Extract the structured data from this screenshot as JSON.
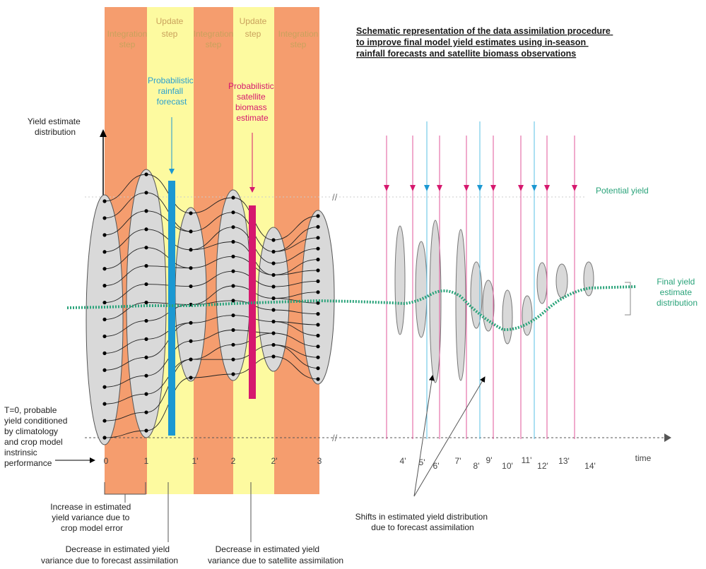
{
  "title": {
    "lines": [
      "Schematic representation of the data assimilation procedure",
      " to improve final model yield estimates using in-season",
      "rainfall forecasts and satellite biomass observations"
    ]
  },
  "colors": {
    "integration_band": "#f59d6e",
    "update_band": "#fdfaa0",
    "forecast_bar": "#1b98d2",
    "satellite_bar": "#d6186e",
    "potential_yield": "#2aa37a",
    "ellipse_fill": "#d9d9d9",
    "header_text": "#c9a15c",
    "forecast_text": "#2aa0cf",
    "satellite_text": "#d6186e",
    "forecast_arrow": "#58c0e6",
    "satellite_arrow": "#e2559a"
  },
  "bands": [
    {
      "type": "integration",
      "label_lines": [
        "Integration",
        "step"
      ]
    },
    {
      "type": "update",
      "label_lines": [
        "Update",
        "step"
      ]
    },
    {
      "type": "integration",
      "label_lines": [
        "Integration",
        "step"
      ]
    },
    {
      "type": "update",
      "label_lines": [
        "Update",
        "step"
      ]
    },
    {
      "type": "integration",
      "label_lines": [
        "Integration",
        "step"
      ]
    }
  ],
  "left_panel": {
    "yield_axis_label": [
      "Yield estimate",
      "distribution"
    ],
    "forecast_label": [
      "Probabilistic",
      "rainfall",
      "forecast"
    ],
    "satellite_label": [
      "Probabilistic",
      "satellite",
      "biomass",
      "estimate"
    ],
    "t0_label": [
      "T=0, probable",
      "yield conditioned",
      "by climatology",
      "and crop model",
      "instrinsic",
      "performance"
    ],
    "steps": [
      "0",
      "1",
      "1'",
      "2",
      "2'",
      "3"
    ]
  },
  "right_panel": {
    "potential_yield_label": "Potential yield",
    "final_label": [
      "Final yield",
      "estimate",
      "distribution"
    ],
    "ticks": [
      "4'",
      "5'",
      "6'",
      "7'",
      "8'",
      "9'",
      "10'",
      "11'",
      "12'",
      "13'",
      "14'"
    ],
    "time_label": "time",
    "arrows": [
      "satellite",
      "satellite",
      "forecast",
      "satellite",
      "satellite",
      "forecast",
      "satellite",
      "satellite",
      "forecast",
      "satellite",
      "satellite"
    ],
    "break_mark": "//"
  },
  "annotations": {
    "increase": [
      "Increase in estimated",
      "yield variance due to",
      "crop model error"
    ],
    "decrease_forecast": [
      "Decrease in estimated yield",
      "variance due to forecast assimilation"
    ],
    "decrease_satellite": [
      "Decrease in estimated yield",
      "variance due to satellite assimilation"
    ],
    "shifts": [
      "Shifts in estimated yield distribution",
      "due to forecast assimilation"
    ]
  }
}
